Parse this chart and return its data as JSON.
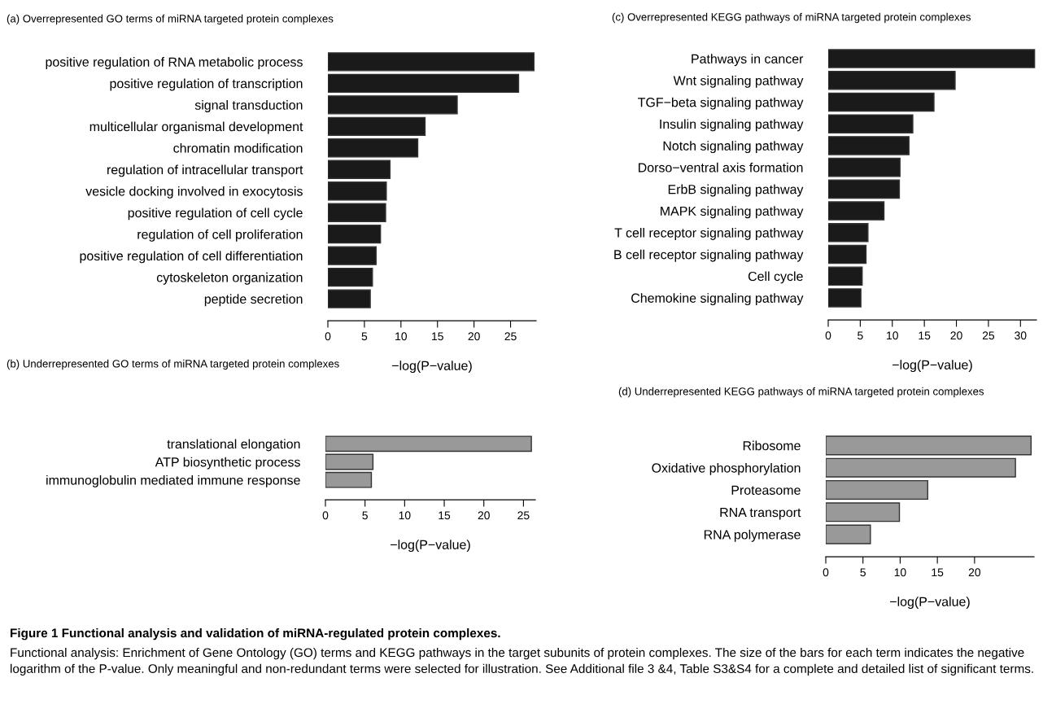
{
  "chart_data": [
    {
      "type": "bar",
      "orientation": "horizontal",
      "title": "(a) Overrepresented GO terms of miRNA targeted protein complexes",
      "categories": [
        "positive regulation of RNA metabolic process",
        "positive regulation of transcription",
        "signal transduction",
        "multicellular organismal development",
        "chromatin modification",
        "regulation of intracellular transport",
        "vesicle docking involved in exocytosis",
        "positive regulation of cell cycle",
        "regulation of cell proliferation",
        "positive regulation of cell differentiation",
        "cytoskeleton organization",
        "peptide secretion"
      ],
      "values": [
        28.2,
        26.1,
        17.7,
        13.3,
        12.3,
        8.5,
        8.0,
        7.9,
        7.2,
        6.6,
        6.1,
        5.8
      ],
      "color": "#1a1a1a",
      "xlabel": "−log(P−value)",
      "xlim": [
        0,
        28.5
      ],
      "xticks": [
        0,
        5,
        10,
        15,
        20,
        25
      ]
    },
    {
      "type": "bar",
      "orientation": "horizontal",
      "title": "(c) Overrepresented KEGG pathways of miRNA targeted protein complexes",
      "categories": [
        "Pathways in cancer",
        "Wnt signaling pathway",
        "TGF−beta signaling pathway",
        "Insulin signaling pathway",
        "Notch signaling pathway",
        "Dorso−ventral axis formation",
        "ErbB signaling pathway",
        "MAPK signaling pathway",
        "T cell receptor signaling pathway",
        "B cell receptor signaling pathway",
        "Cell cycle",
        "Chemokine signaling pathway"
      ],
      "values": [
        32.2,
        19.8,
        16.5,
        13.2,
        12.6,
        11.2,
        11.1,
        8.7,
        6.2,
        5.9,
        5.3,
        5.1
      ],
      "color": "#1a1a1a",
      "xlabel": "−log(P−value)",
      "xlim": [
        0,
        32.5
      ],
      "xticks": [
        0,
        5,
        10,
        15,
        20,
        25,
        30
      ]
    },
    {
      "type": "bar",
      "orientation": "horizontal",
      "title": "(b) Underrepresented GO terms of miRNA targeted protein complexes",
      "categories": [
        "translational elongation",
        "ATP biosynthetic process",
        "immunoglobulin mediated immune response"
      ],
      "values": [
        26.0,
        6.0,
        5.8
      ],
      "color": "#999999",
      "xlabel": "−log(P−value)",
      "xlim": [
        0,
        26.5
      ],
      "xticks": [
        0,
        5,
        10,
        15,
        20,
        25
      ]
    },
    {
      "type": "bar",
      "orientation": "horizontal",
      "title": "(d) Underrepresented KEGG pathways of miRNA targeted protein complexes",
      "categories": [
        "Ribosome",
        "Oxidative phosphorylation",
        "Proteasome",
        "RNA transport",
        "RNA polymerase"
      ],
      "values": [
        27.6,
        25.5,
        13.7,
        9.9,
        6.0
      ],
      "color": "#999999",
      "xlabel": "−log(P−value)",
      "xlim": [
        0,
        28
      ],
      "xticks": [
        0,
        5,
        10,
        15,
        20
      ],
      "annotations": [
        "Figure 1 Functional analysis and validation of miRNA-regulated protein complexes.",
        "Functional analysis: Enrichment of Gene Ontology (GO) terms and KEGG pathways in the target subunits of protein complexes. The size of the bars for each term indicates the negative logarithm of the P-value. Only meaningful and non-redundant terms were selected for illustration. See Additional file 3 &4, Table S3&S4 for a complete and detailed list of significant terms."
      ]
    }
  ]
}
